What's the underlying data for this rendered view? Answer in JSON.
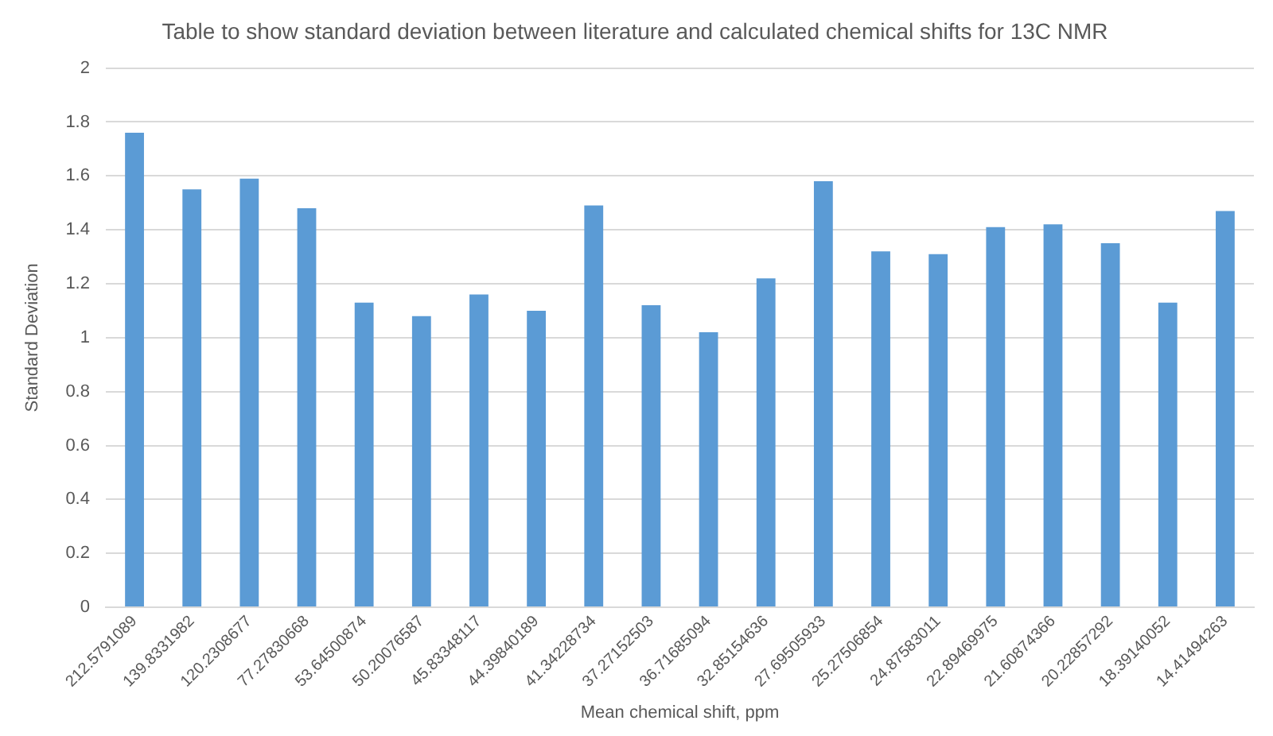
{
  "chart_data": {
    "type": "bar",
    "title": "Table to show standard deviation between literature and calculated chemical shifts for 13C NMR",
    "xlabel": "Mean chemical shift, ppm",
    "ylabel": "Standard Deviation",
    "categories": [
      "212.5791089",
      "139.8331982",
      "120.2308677",
      "77.27830668",
      "53.64500874",
      "50.20076587",
      "45.83348117",
      "44.39840189",
      "41.34228734",
      "37.27152503",
      "36.71685094",
      "32.85154636",
      "27.69505933",
      "25.27506854",
      "24.87583011",
      "22.89469975",
      "21.60874366",
      "20.22857292",
      "18.39140052",
      "14.41494263"
    ],
    "values": [
      1.76,
      1.55,
      1.59,
      1.48,
      1.13,
      1.08,
      1.16,
      1.1,
      1.49,
      1.12,
      1.02,
      1.22,
      1.58,
      1.32,
      1.31,
      1.41,
      1.42,
      1.35,
      1.13,
      1.47
    ],
    "color": "#5b9bd5",
    "ylim": [
      0,
      2
    ],
    "yticks": [
      0,
      0.2,
      0.4,
      0.6,
      0.8,
      1,
      1.2,
      1.4,
      1.6,
      1.8,
      2
    ],
    "grid": "y",
    "legend": false
  }
}
